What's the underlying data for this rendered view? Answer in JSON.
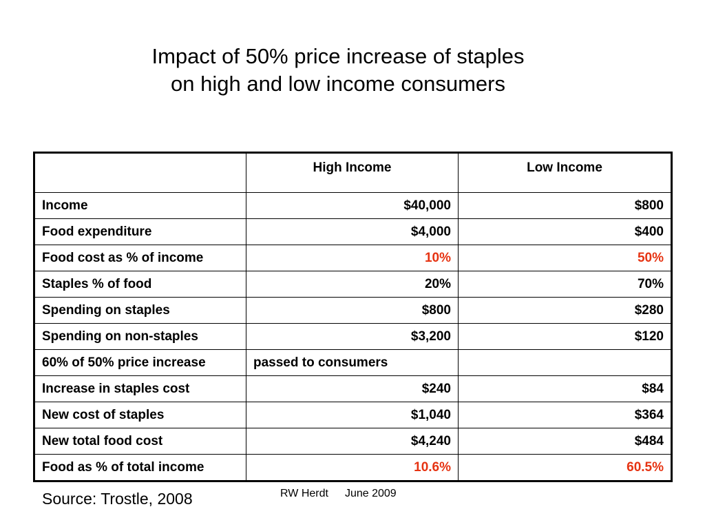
{
  "title": {
    "line1": "Impact of 50% price increase of staples",
    "line2": "on high and low income consumers"
  },
  "table": {
    "headers": [
      "",
      "High Income",
      "Low Income"
    ],
    "rows": [
      {
        "label": "Income",
        "high": "$40,000",
        "low": "$800"
      },
      {
        "label": "Food expenditure",
        "high": "$4,000",
        "low": "$400"
      },
      {
        "label": "Food cost as % of income",
        "high": "10%",
        "low": "50%"
      },
      {
        "label": "Staples % of food",
        "high": "20%",
        "low": "70%"
      },
      {
        "label": "Spending on staples",
        "high": "$800",
        "low": "$280"
      },
      {
        "label": "Spending on non-staples",
        "high": "$3,200",
        "low": "$120"
      },
      {
        "label": "60% of 50% price increase",
        "high": "passed to consumers",
        "low": ""
      },
      {
        "label": "Increase in staples cost",
        "high": "$240",
        "low": "$84"
      },
      {
        "label": "New cost of staples",
        "high": "$1,040",
        "low": "$364"
      },
      {
        "label": "New total food cost",
        "high": "$4,240",
        "low": "$484"
      },
      {
        "label": "Food as % of total income",
        "high": "10.6%",
        "low": "60.5%"
      }
    ],
    "highlight_color": "#e63312"
  },
  "source": "Source: Trostle, 2008",
  "footer": {
    "author": "RW Herdt",
    "date": "June 2009"
  }
}
